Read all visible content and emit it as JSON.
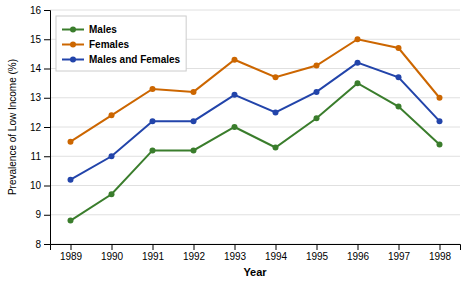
{
  "chart_data": {
    "type": "line",
    "xlabel": "Year",
    "ylabel": "Prevalence of Low Income (%)",
    "x": [
      1989,
      1990,
      1991,
      1992,
      1993,
      1994,
      1995,
      1996,
      1997,
      1998
    ],
    "series": [
      {
        "name": "Males",
        "color": "#3a7d2c",
        "marker": "circle",
        "values": [
          8.8,
          9.7,
          11.2,
          11.2,
          12.0,
          11.3,
          12.3,
          13.5,
          12.7,
          11.4
        ]
      },
      {
        "name": "Females",
        "color": "#cc6600",
        "marker": "circle",
        "values": [
          11.5,
          12.4,
          13.3,
          13.2,
          14.3,
          13.7,
          14.1,
          15.0,
          14.7,
          13.0
        ]
      },
      {
        "name": "Males and Females",
        "color": "#2244aa",
        "marker": "circle",
        "values": [
          10.2,
          11.0,
          12.2,
          12.2,
          13.1,
          12.5,
          13.2,
          14.2,
          13.7,
          12.2
        ]
      }
    ],
    "xlim": [
      1988.5,
      1998.5
    ],
    "xticks": [
      1989,
      1990,
      1991,
      1992,
      1993,
      1994,
      1995,
      1996,
      1997,
      1998
    ],
    "ylim": [
      8,
      16
    ],
    "yticks": [
      8,
      9,
      10,
      11,
      12,
      13,
      14,
      15,
      16
    ],
    "grid": "y",
    "legend": "upper left"
  }
}
